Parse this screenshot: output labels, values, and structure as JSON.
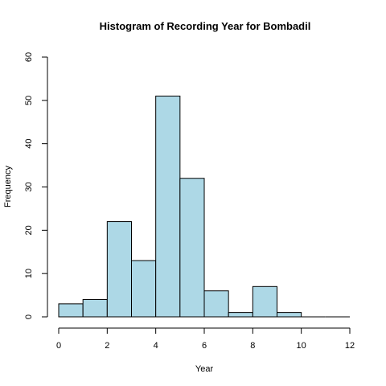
{
  "chart_data": {
    "type": "bar",
    "title": "Histogram of Recording Year for Bombadil",
    "xlabel": "Year",
    "ylabel": "Frequency",
    "xlim": [
      0,
      12
    ],
    "ylim": [
      0,
      60
    ],
    "x_ticks": [
      "0",
      "2",
      "4",
      "6",
      "8",
      "10",
      "12"
    ],
    "y_ticks": [
      "0",
      "10",
      "20",
      "30",
      "40",
      "50",
      "60"
    ],
    "bins": [
      {
        "start": 0,
        "end": 1,
        "count": 3
      },
      {
        "start": 1,
        "end": 2,
        "count": 4
      },
      {
        "start": 2,
        "end": 3,
        "count": 22
      },
      {
        "start": 3,
        "end": 4,
        "count": 13
      },
      {
        "start": 4,
        "end": 5,
        "count": 51
      },
      {
        "start": 5,
        "end": 6,
        "count": 32
      },
      {
        "start": 6,
        "end": 7,
        "count": 6
      },
      {
        "start": 7,
        "end": 8,
        "count": 1
      },
      {
        "start": 8,
        "end": 9,
        "count": 7
      },
      {
        "start": 9,
        "end": 10,
        "count": 1
      },
      {
        "start": 10,
        "end": 11,
        "count": 0
      },
      {
        "start": 11,
        "end": 12,
        "count": 0
      }
    ],
    "bar_color": "#add8e6",
    "grid": false
  }
}
